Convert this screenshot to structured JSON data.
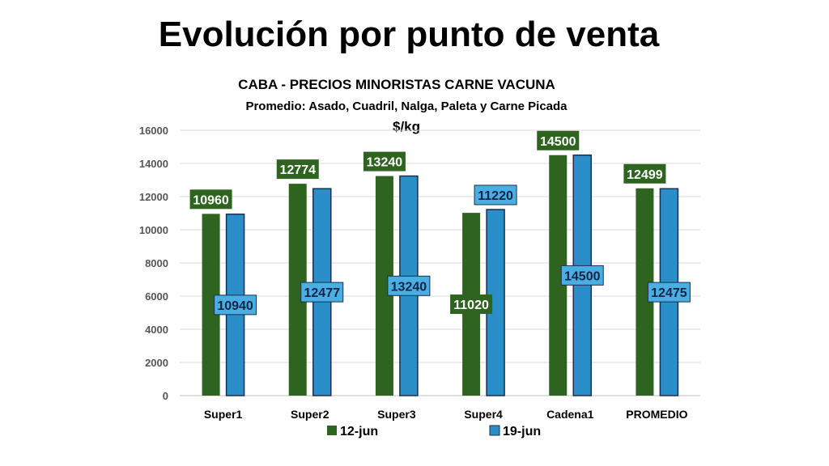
{
  "slide_title": "Evolución por punto de venta",
  "chart_data": {
    "type": "bar",
    "title": "CABA -  PRECIOS MINORISTAS CARNE VACUNA",
    "subtitle": "Promedio: Asado, Cuadril, Nalga, Paleta y Carne Picada",
    "ylabel": "$/kg",
    "xlabel": "",
    "categories": [
      "Super1",
      "Super2",
      "Super3",
      "Super4",
      "Cadena1",
      "PROMEDIO"
    ],
    "series": [
      {
        "name": "12-jun",
        "values": [
          10960,
          12774,
          13240,
          11020,
          14500,
          12499
        ],
        "color": "#2E6420"
      },
      {
        "name": "19-jun",
        "values": [
          10940,
          12477,
          13240,
          11220,
          14500,
          12475
        ],
        "color": "#2A8FC8"
      }
    ],
    "ylim": [
      0,
      16000
    ],
    "yticks": [
      0,
      2000,
      4000,
      6000,
      8000,
      10000,
      12000,
      14000,
      16000
    ],
    "grid": true,
    "legend": "bottom"
  }
}
